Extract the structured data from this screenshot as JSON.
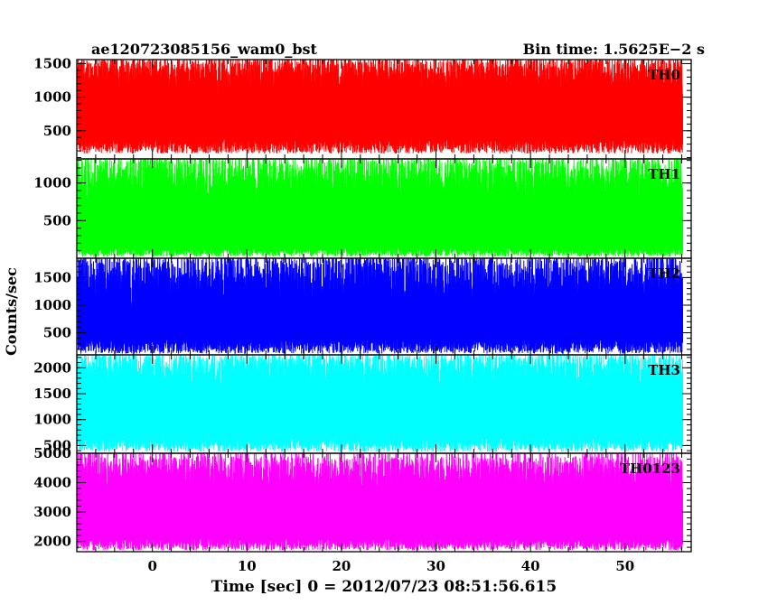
{
  "chart_data": {
    "type": "line",
    "title_left": "ae120723085156_wam0_bst",
    "title_right": "Bin time: 1.5625E−2 s",
    "xlabel": "Time [sec] 0 = 2012/07/23 08:51:56.615",
    "ylabel": "Counts/sec",
    "xlim": [
      -8,
      57
    ],
    "data_xrange": [
      -7.9,
      56.1
    ],
    "x_ticks": [
      0,
      10,
      20,
      30,
      40,
      50
    ],
    "grid": false,
    "panels": [
      {
        "name": "TH0",
        "color": "#ff0000",
        "ylim": [
          80,
          1560
        ],
        "y_ticks": [
          500,
          1000,
          1500
        ],
        "baseline_min": 160,
        "baseline_max": 370,
        "peak_min": 1050,
        "peak_max": 1560,
        "peak_clip": 1560
      },
      {
        "name": "TH1",
        "color": "#00ff00",
        "ylim": [
          0,
          1320
        ],
        "y_ticks": [
          500,
          1000
        ],
        "baseline_min": 20,
        "baseline_max": 140,
        "peak_min": 700,
        "peak_max": 1320,
        "peak_clip": 1320
      },
      {
        "name": "TH2",
        "color": "#0000ff",
        "ylim": [
          100,
          1850
        ],
        "y_ticks": [
          500,
          1000,
          1500
        ],
        "baseline_min": 120,
        "baseline_max": 380,
        "peak_min": 900,
        "peak_max": 1850,
        "peak_clip": 1850
      },
      {
        "name": "TH3",
        "color": "#00ffff",
        "ylim": [
          350,
          2250
        ],
        "y_ticks": [
          500,
          1000,
          1500,
          2000
        ],
        "baseline_min": 380,
        "baseline_max": 650,
        "peak_min": 1600,
        "peak_max": 2250,
        "peak_clip": 2250
      },
      {
        "name": "TH0123",
        "color": "#ff00ff",
        "ylim": [
          1650,
          5000
        ],
        "y_ticks": [
          2000,
          3000,
          4000,
          5000
        ],
        "baseline_min": 1700,
        "baseline_max": 2100,
        "peak_min": 3600,
        "peak_max": 4900,
        "peak_clip": 5000
      }
    ]
  }
}
